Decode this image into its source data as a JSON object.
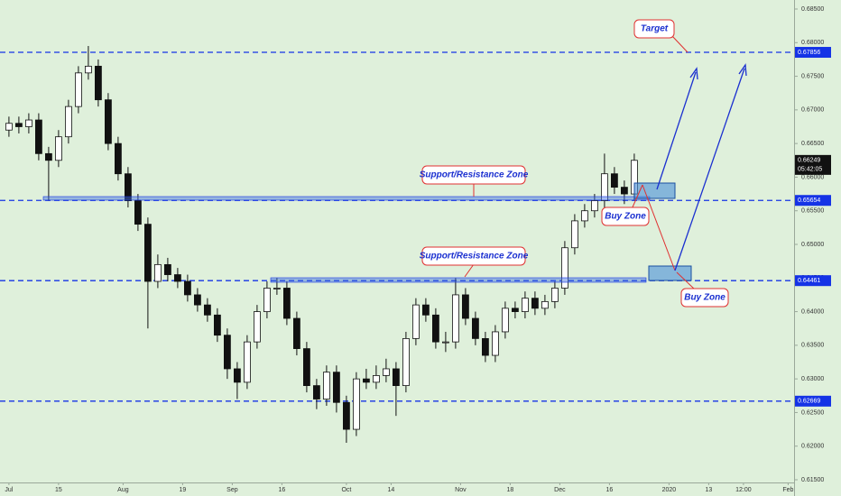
{
  "chart_data": {
    "type": "candlestick",
    "x": [
      0,
      2,
      4,
      6,
      8,
      10,
      12,
      14,
      16,
      18,
      20,
      22,
      24,
      26,
      28,
      30,
      32,
      34,
      36,
      38,
      40,
      42,
      44,
      46,
      48,
      50,
      52,
      54,
      56,
      58,
      60,
      62,
      64,
      66,
      68,
      70,
      72,
      74,
      76,
      78,
      80,
      82,
      84,
      86,
      88,
      90,
      92,
      94,
      96,
      98,
      100,
      102,
      104,
      106,
      108,
      110,
      112,
      114,
      116,
      118,
      120,
      122,
      124,
      126
    ],
    "open": [
      0.667,
      0.668,
      0.6675,
      0.6685,
      0.6635,
      0.6625,
      0.666,
      0.6705,
      0.6755,
      0.6765,
      0.6715,
      0.665,
      0.6605,
      0.6565,
      0.653,
      0.6445,
      0.647,
      0.6455,
      0.6445,
      0.6425,
      0.641,
      0.6395,
      0.6365,
      0.6315,
      0.6295,
      0.6355,
      0.64,
      0.6435,
      0.6435,
      0.639,
      0.6345,
      0.629,
      0.627,
      0.631,
      0.6265,
      0.6225,
      0.63,
      0.6295,
      0.6305,
      0.6315,
      0.629,
      0.636,
      0.641,
      0.6395,
      0.6355,
      0.6355,
      0.6425,
      0.639,
      0.636,
      0.6335,
      0.637,
      0.6405,
      0.64,
      0.642,
      0.6405,
      0.6415,
      0.6435,
      0.6495,
      0.6535,
      0.655,
      0.6565,
      0.6605,
      0.6585,
      0.6575
    ],
    "high": [
      0.669,
      0.669,
      0.6695,
      0.6695,
      0.6645,
      0.667,
      0.6715,
      0.6765,
      0.6795,
      0.6775,
      0.6725,
      0.666,
      0.6615,
      0.6575,
      0.654,
      0.6485,
      0.648,
      0.6465,
      0.6455,
      0.6435,
      0.642,
      0.6405,
      0.6375,
      0.6325,
      0.6365,
      0.641,
      0.6445,
      0.645,
      0.6445,
      0.64,
      0.6355,
      0.63,
      0.632,
      0.632,
      0.6275,
      0.631,
      0.6315,
      0.632,
      0.633,
      0.6325,
      0.637,
      0.642,
      0.642,
      0.6405,
      0.637,
      0.645,
      0.6435,
      0.64,
      0.637,
      0.638,
      0.6415,
      0.6415,
      0.643,
      0.643,
      0.6425,
      0.6445,
      0.6505,
      0.6545,
      0.656,
      0.6575,
      0.6635,
      0.6615,
      0.6595,
      0.6635
    ],
    "low": [
      0.666,
      0.6665,
      0.6665,
      0.6625,
      0.6565,
      0.6615,
      0.665,
      0.6695,
      0.6745,
      0.6705,
      0.664,
      0.6595,
      0.6555,
      0.652,
      0.6375,
      0.6435,
      0.6445,
      0.6435,
      0.6415,
      0.64,
      0.6385,
      0.6355,
      0.63,
      0.627,
      0.6285,
      0.6345,
      0.639,
      0.6425,
      0.638,
      0.6335,
      0.628,
      0.6255,
      0.626,
      0.625,
      0.6205,
      0.6215,
      0.6285,
      0.6285,
      0.6295,
      0.6245,
      0.628,
      0.635,
      0.6385,
      0.6345,
      0.634,
      0.6345,
      0.638,
      0.635,
      0.6325,
      0.6325,
      0.636,
      0.639,
      0.639,
      0.6395,
      0.6395,
      0.6405,
      0.6425,
      0.6485,
      0.6525,
      0.654,
      0.6555,
      0.6575,
      0.656,
      0.6565
    ],
    "close": [
      0.668,
      0.6675,
      0.6685,
      0.6635,
      0.6625,
      0.666,
      0.6705,
      0.6755,
      0.6765,
      0.6715,
      0.665,
      0.6605,
      0.6565,
      0.653,
      0.6445,
      0.647,
      0.6455,
      0.6445,
      0.6425,
      0.641,
      0.6395,
      0.6365,
      0.6315,
      0.6295,
      0.6355,
      0.64,
      0.6435,
      0.6435,
      0.639,
      0.6345,
      0.629,
      0.627,
      0.631,
      0.6265,
      0.6225,
      0.63,
      0.6295,
      0.6305,
      0.6315,
      0.629,
      0.636,
      0.641,
      0.6395,
      0.6355,
      0.6355,
      0.6425,
      0.639,
      0.636,
      0.6335,
      0.637,
      0.6405,
      0.64,
      0.642,
      0.6405,
      0.6415,
      0.6435,
      0.6495,
      0.6535,
      0.655,
      0.6565,
      0.6605,
      0.6585,
      0.6575,
      0.6625
    ],
    "xlim": [
      -1.8,
      158.2
    ],
    "xticks": [
      {
        "value": 0,
        "label": "Jul"
      },
      {
        "value": 10,
        "label": "15"
      },
      {
        "value": 23,
        "label": "Aug"
      },
      {
        "value": 35,
        "label": "19"
      },
      {
        "value": 45,
        "label": "Sep"
      },
      {
        "value": 55,
        "label": "16"
      },
      {
        "value": 68,
        "label": "Oct"
      },
      {
        "value": 77,
        "label": "14"
      },
      {
        "value": 91,
        "label": "Nov"
      },
      {
        "value": 101,
        "label": "18"
      },
      {
        "value": 111,
        "label": "Dec"
      },
      {
        "value": 121,
        "label": "16"
      },
      {
        "value": 133,
        "label": "2020"
      },
      {
        "value": 141,
        "label": "13"
      },
      {
        "value": 148,
        "label": "12:00"
      },
      {
        "value": 157,
        "label": "Feb"
      }
    ],
    "ylim": [
      0.615,
      0.685
    ],
    "yticks": [
      {
        "value": 0.685,
        "label": "0.68500"
      },
      {
        "value": 0.68,
        "label": "0.68000"
      },
      {
        "value": 0.675,
        "label": "0.67500"
      },
      {
        "value": 0.67,
        "label": "0.67000"
      },
      {
        "value": 0.665,
        "label": "0.66500"
      },
      {
        "value": 0.66,
        "label": "0.66000"
      },
      {
        "value": 0.655,
        "label": "0.65500"
      },
      {
        "value": 0.65,
        "label": "0.65000"
      },
      {
        "value": 0.645,
        "label": "0.64500"
      },
      {
        "value": 0.64,
        "label": "0.64000"
      },
      {
        "value": 0.635,
        "label": "0.63500"
      },
      {
        "value": 0.63,
        "label": "0.63000"
      },
      {
        "value": 0.625,
        "label": "0.62500"
      },
      {
        "value": 0.62,
        "label": "0.62000"
      },
      {
        "value": 0.615,
        "label": "0.61500"
      }
    ],
    "hlines": [
      0.67856,
      0.65654,
      0.64461,
      0.62669
    ],
    "hline_color": "#1533e6",
    "current": {
      "value": 0.66249,
      "time": "05:42:05"
    },
    "annotations": [
      "Target",
      "Support/Resistance Zone",
      "Support/Resistance Zone",
      "Buy Zone",
      "Buy Zone"
    ]
  }
}
